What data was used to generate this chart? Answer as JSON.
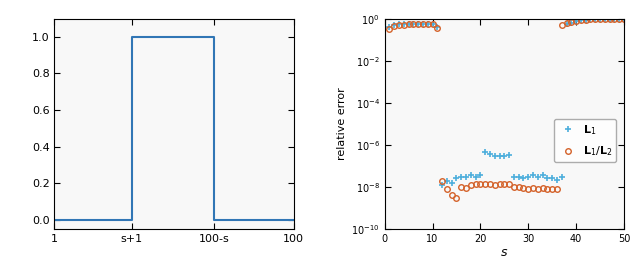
{
  "left_plot": {
    "xlabel_ticks": [
      "1",
      "s+1",
      "100-s",
      "100"
    ],
    "xlabel_tick_positions": [
      1,
      33,
      67,
      100
    ],
    "yticks": [
      0,
      0.2,
      0.4,
      0.6,
      0.8,
      1.0
    ],
    "xlim": [
      1,
      100
    ],
    "ylim": [
      -0.05,
      1.1
    ],
    "step_x": [
      1,
      33,
      33,
      67,
      67,
      100
    ],
    "step_y": [
      0,
      0,
      1,
      1,
      0,
      0
    ],
    "line_color": "#3176b5",
    "linewidth": 1.5
  },
  "right_plot": {
    "ylabel": "relative error",
    "xlabel": "S",
    "xlim": [
      0,
      50
    ],
    "ylim_log": [
      -10,
      0
    ],
    "yticks_log": [
      -10,
      -8,
      -6,
      -4,
      -2,
      0
    ],
    "l1_s": [
      1,
      2,
      3,
      4,
      5,
      6,
      7,
      8,
      9,
      10,
      11,
      12,
      13,
      14,
      15,
      16,
      17,
      18,
      19,
      20,
      21,
      22,
      23,
      24,
      25,
      26,
      27,
      28,
      29,
      30,
      31,
      32,
      33,
      34,
      35,
      36,
      37,
      38,
      39,
      40,
      41,
      42,
      43,
      44,
      45,
      46,
      47,
      48,
      49,
      50
    ],
    "l1_err": [
      0.4,
      0.5,
      0.53,
      0.55,
      0.56,
      0.56,
      0.56,
      0.57,
      0.57,
      0.57,
      0.42,
      1.2e-08,
      1.8e-08,
      1.5e-08,
      2.5e-08,
      3e-08,
      2.8e-08,
      3.5e-08,
      3e-08,
      3.5e-08,
      4.5e-07,
      3.5e-07,
      3e-07,
      3e-07,
      2.8e-07,
      3.2e-07,
      3e-08,
      2.8e-08,
      2.5e-08,
      3e-08,
      3.5e-08,
      2.8e-08,
      3.5e-08,
      2.5e-08,
      2.5e-08,
      2.2e-08,
      2.8e-08,
      0.55,
      0.65,
      0.75,
      0.82,
      0.88,
      0.91,
      0.94,
      0.96,
      0.97,
      0.98,
      0.99,
      0.995,
      1.0
    ],
    "l12_s": [
      1,
      2,
      3,
      4,
      5,
      6,
      7,
      8,
      9,
      10,
      11,
      12,
      13,
      14,
      15,
      16,
      17,
      18,
      19,
      20,
      21,
      22,
      23,
      24,
      25,
      26,
      27,
      28,
      29,
      30,
      31,
      32,
      33,
      34,
      35,
      36,
      37,
      38,
      39,
      40,
      41,
      42,
      43,
      44,
      45,
      46,
      47,
      48,
      49,
      50
    ],
    "l12_err": [
      0.33,
      0.46,
      0.5,
      0.52,
      0.53,
      0.54,
      0.55,
      0.55,
      0.55,
      0.54,
      0.36,
      1.8e-08,
      8e-09,
      4e-09,
      3e-09,
      1e-08,
      9e-09,
      1.2e-08,
      1.3e-08,
      1.4e-08,
      1.4e-08,
      1.4e-08,
      1.2e-08,
      1.4e-08,
      1.3e-08,
      1.4e-08,
      1e-08,
      9.5e-09,
      8.5e-09,
      8e-09,
      8.5e-09,
      8e-09,
      8.5e-09,
      8e-09,
      7.5e-09,
      8e-09,
      0.52,
      0.62,
      0.72,
      0.8,
      0.86,
      0.9,
      0.93,
      0.95,
      0.96,
      0.97,
      0.98,
      0.99,
      1.0,
      1.0
    ],
    "l1_color": "#4daedc",
    "l12_color": "#d4622a"
  },
  "fig_bgcolor": "#f0f0f0"
}
